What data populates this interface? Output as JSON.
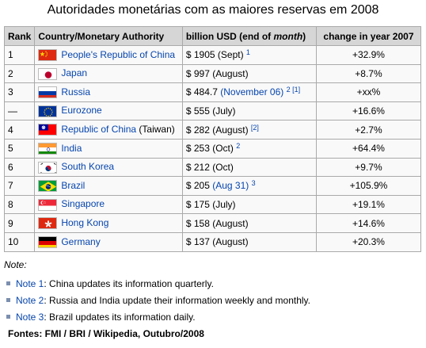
{
  "title": "Autoridades monetárias com as maiores reservas em 2008",
  "table": {
    "headers": {
      "rank": "Rank",
      "country": "Country/Monetary Authority",
      "usd_prefix": "billion USD (end of ",
      "usd_month": "month",
      "usd_suffix": ")",
      "change": "change in year 2007"
    },
    "rows": [
      {
        "rank": "1",
        "country": "People's Republic of China",
        "extra": "",
        "flag": "china-flag-icon",
        "amount": "$ 1905",
        "date": "(Sept)",
        "date_link": "",
        "sup": "1",
        "change": "+32.9%"
      },
      {
        "rank": "2",
        "country": "Japan",
        "extra": "",
        "flag": "japan-flag-icon",
        "amount": "$ 997",
        "date": "(August)",
        "date_link": "",
        "sup": "",
        "change": "+8.7%"
      },
      {
        "rank": "3",
        "country": "Russia",
        "extra": "",
        "flag": "russia-flag-icon",
        "amount": "$ 484.7",
        "date": "",
        "date_link": "(November 06)",
        "sup": "2 [1]",
        "change": "+xx%"
      },
      {
        "rank": "—",
        "country": "Eurozone",
        "extra": "",
        "flag": "eu-flag-icon",
        "amount": "$ 555",
        "date": "(July)",
        "date_link": "",
        "sup": "",
        "change": "+16.6%"
      },
      {
        "rank": "4",
        "country": "Republic of China",
        "extra": " (Taiwan)",
        "flag": "taiwan-flag-icon",
        "amount": "$ 282",
        "date": "(August)",
        "date_link": "",
        "sup": "[2]",
        "change": "+2.7%"
      },
      {
        "rank": "5",
        "country": "India",
        "extra": "",
        "flag": "india-flag-icon",
        "amount": "$ 253",
        "date": "(Oct)",
        "date_link": "",
        "sup": "2",
        "change": "+64.4%"
      },
      {
        "rank": "6",
        "country": "South Korea",
        "extra": "",
        "flag": "south-korea-flag-icon",
        "amount": "$ 212",
        "date": "(Oct)",
        "date_link": "",
        "sup": "",
        "change": "+9.7%"
      },
      {
        "rank": "7",
        "country": "Brazil",
        "extra": "",
        "flag": "brazil-flag-icon",
        "amount": "$ 205",
        "date": "",
        "date_link": "(Aug 31)",
        "sup": "3",
        "change": "+105.9%"
      },
      {
        "rank": "8",
        "country": "Singapore",
        "extra": "",
        "flag": "singapore-flag-icon",
        "amount": "$ 175",
        "date": "(July)",
        "date_link": "",
        "sup": "",
        "change": "+19.1%"
      },
      {
        "rank": "9",
        "country": "Hong Kong",
        "extra": "",
        "flag": "hong-kong-flag-icon",
        "amount": "$ 158",
        "date": "(August)",
        "date_link": "",
        "sup": "",
        "change": "+14.6%"
      },
      {
        "rank": "10",
        "country": "Germany",
        "extra": "",
        "flag": "germany-flag-icon",
        "amount": "$ 137",
        "date": "(August)",
        "date_link": "",
        "sup": "",
        "change": "+20.3%"
      }
    ]
  },
  "notes": {
    "label": "Note:",
    "items": [
      {
        "link": "Note 1",
        "text": ": China updates its information quarterly."
      },
      {
        "link": "Note 2",
        "text": ": Russia and India update their information weekly and monthly."
      },
      {
        "link": "Note 3",
        "text": ": Brazil updates its information daily."
      }
    ]
  },
  "sources": "Fontes:  FMI / BRI / Wikipedia, Outubro/2008",
  "colors": {
    "link": "#0645ad",
    "header_bg": "#d6d6d6",
    "border": "#aaaaaa",
    "bullet": "#7b8faf"
  }
}
